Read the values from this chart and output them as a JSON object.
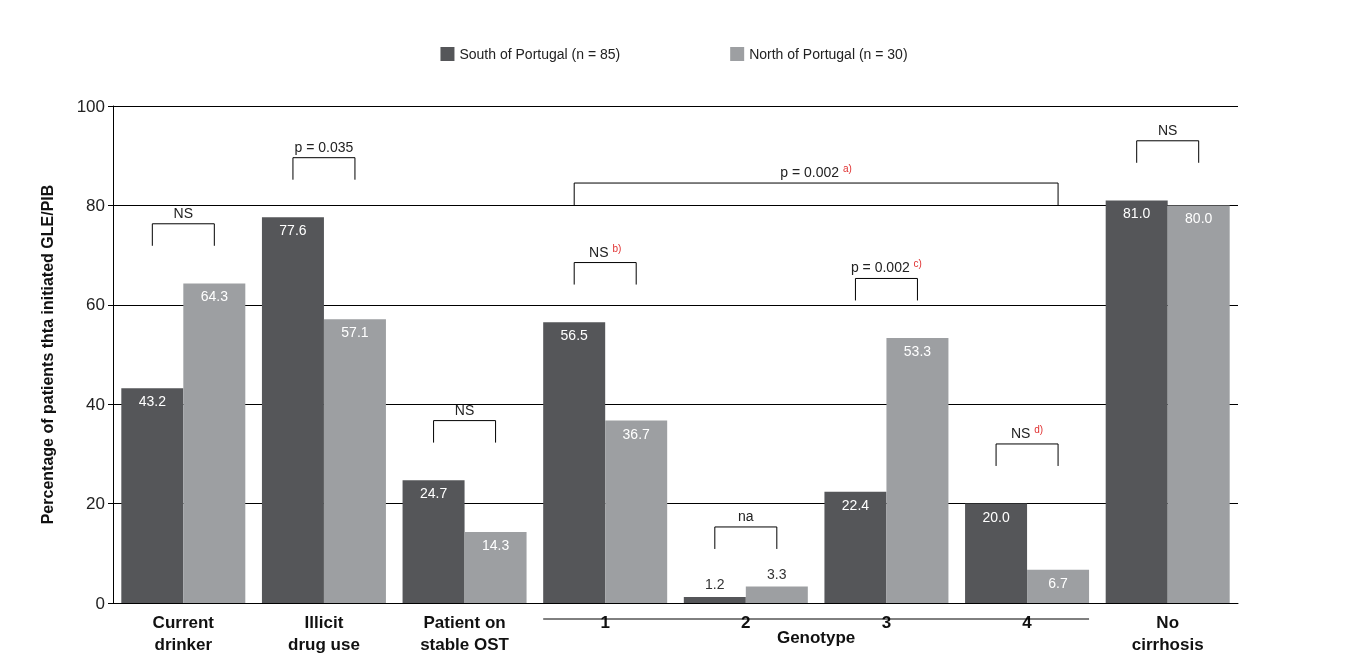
{
  "chart_data": {
    "type": "bar",
    "ylabel": "Percentage of patients thta initiated GLE/PIB",
    "categories": [
      "Current\ndrinker",
      "Illicit\ndrug use",
      "Patient on\nstable OST",
      "1",
      "2",
      "3",
      "4",
      "No\ncirrhosis"
    ],
    "series": [
      {
        "name": "South of Portugal (n = 85)",
        "color": "#555659",
        "values": [
          43.2,
          77.6,
          24.7,
          56.5,
          1.2,
          22.4,
          20.0,
          81.0
        ],
        "value_labels": [
          "43.2",
          "77.6",
          "24.7",
          "56.5",
          "1.2",
          "22.4",
          "20.0",
          "81.0"
        ]
      },
      {
        "name": "North of Portugal (n = 30)",
        "color": "#9d9fa2",
        "values": [
          64.3,
          57.1,
          14.3,
          36.7,
          3.3,
          53.3,
          6.7,
          80.0
        ],
        "value_labels": [
          "64.3",
          "57.1",
          "14.3",
          "36.7",
          "3.3",
          "53.3",
          "6.7",
          "80.0"
        ]
      }
    ],
    "ylim": [
      0,
      100
    ],
    "yticks": [
      0,
      20,
      40,
      60,
      80,
      100
    ],
    "grid": "y",
    "legend": "top",
    "annotations": [
      "NS",
      "p = 0.035",
      "NS",
      "p = 0.002 $^{a)}$",
      "NS $^{b)}$",
      "na",
      "p = 0.002 $^{c)}$",
      "NS $^{d)}$",
      "NS",
      "Genotype"
    ]
  }
}
